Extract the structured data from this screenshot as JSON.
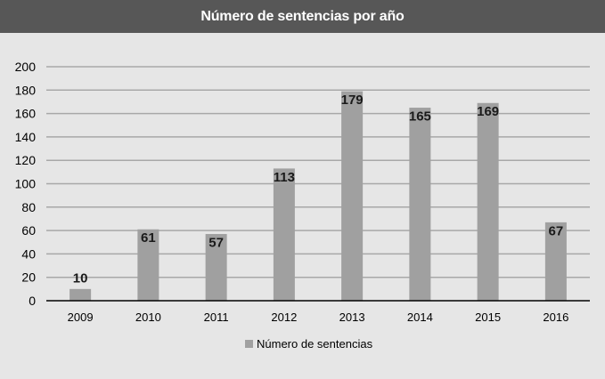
{
  "chart_data": {
    "type": "bar",
    "title": "Número de sentencias por año",
    "categories": [
      "2009",
      "2010",
      "2011",
      "2012",
      "2013",
      "2014",
      "2015",
      "2016"
    ],
    "series": [
      {
        "name": "Número de sentencias",
        "values": [
          10,
          61,
          57,
          113,
          179,
          165,
          169,
          67
        ]
      }
    ],
    "ylim": [
      0,
      200
    ],
    "yticks": [
      0,
      20,
      40,
      60,
      80,
      100,
      120,
      140,
      160,
      180,
      200
    ],
    "grid": true,
    "legend_position": "bottom",
    "data_labels": true,
    "colors": {
      "bar": "#a0a0a0",
      "title_bg": "#575757",
      "plot_bg": "#e6e6e6",
      "grid": "#a8a8a8"
    }
  }
}
